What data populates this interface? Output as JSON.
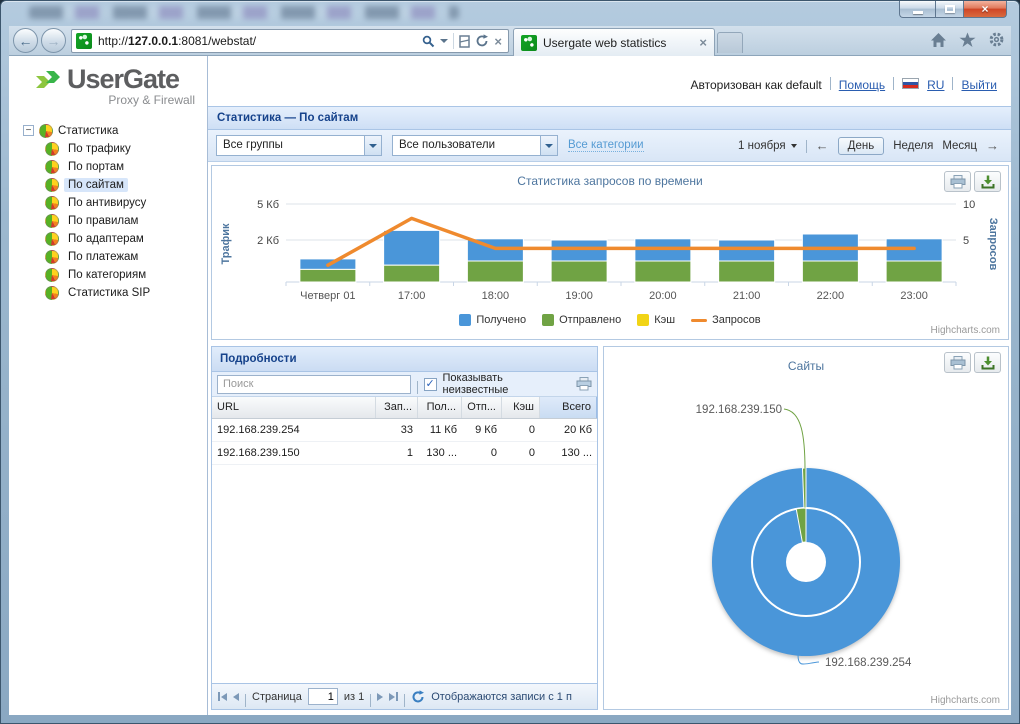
{
  "browser": {
    "url_scheme": "http://",
    "url_host": "127.0.0.1",
    "url_rest": ":8081/webstat/",
    "tab_title": "Usergate web statistics"
  },
  "icons": {
    "back": "←",
    "forward": "→",
    "close": "×",
    "check": "✓",
    "minus": "−",
    "period_prev": "←",
    "period_next": "→"
  },
  "sidebar": {
    "logo_title": "UserGate",
    "logo_subtitle": "Proxy & Firewall",
    "tree_root": "Статистика",
    "items": [
      {
        "label": "По трафику",
        "selected": false
      },
      {
        "label": "По портам",
        "selected": false
      },
      {
        "label": "По сайтам",
        "selected": true
      },
      {
        "label": "По антивирусу",
        "selected": false
      },
      {
        "label": "По правилам",
        "selected": false
      },
      {
        "label": "По адаптерам",
        "selected": false
      },
      {
        "label": "По платежам",
        "selected": false
      },
      {
        "label": "По категориям",
        "selected": false
      },
      {
        "label": "Статистика SIP",
        "selected": false
      }
    ]
  },
  "header": {
    "auth_text": "Авторизован как default",
    "help_link": "Помощь",
    "lang_link": "RU",
    "logout_link": "Выйти"
  },
  "page_title": "Статистика — По сайтам",
  "filters": {
    "groups_value": "Все группы",
    "users_value": "Все пользователи",
    "categories_link": "Все категории",
    "date_value": "1 ноября",
    "day_label": "День",
    "week_label": "Неделя",
    "month_label": "Месяц"
  },
  "chart_data": [
    {
      "type": "bar",
      "title": "Статистика запросов по времени",
      "categories": [
        "Четверг 01",
        "17:00",
        "18:00",
        "19:00",
        "20:00",
        "21:00",
        "22:00",
        "23:00"
      ],
      "stacked": true,
      "series": [
        {
          "name": "Получено",
          "type": "bar",
          "color": "#4a96d9",
          "unit": "Кб",
          "values": [
            0.5,
            2.0,
            1.1,
            1.0,
            1.1,
            1.0,
            1.5,
            1.1
          ]
        },
        {
          "name": "Отправлено",
          "type": "bar",
          "color": "#70a344",
          "unit": "Кб",
          "values": [
            0.6,
            0.8,
            1.0,
            1.0,
            1.0,
            1.0,
            1.0,
            1.0
          ]
        },
        {
          "name": "Кэш",
          "type": "bar",
          "color": "#f1d416",
          "unit": "Кб",
          "values": [
            0,
            0,
            0,
            0,
            0,
            0,
            0,
            0
          ]
        },
        {
          "name": "Запросов",
          "type": "line",
          "color": "#ef8a2e",
          "values": [
            2,
            8,
            4,
            4,
            4,
            4,
            4,
            4
          ]
        }
      ],
      "yaxis_left": {
        "title": "Трафик",
        "ticks": [
          "2 Кб",
          "5 Кб"
        ]
      },
      "yaxis_right": {
        "title": "Запросов",
        "ticks": [
          "5",
          "10"
        ]
      },
      "grid": true,
      "legend_position": "bottom",
      "credits": "Highcharts.com"
    },
    {
      "type": "pie",
      "title": "Сайты",
      "labels": [
        "192.168.239.254",
        "192.168.239.150"
      ],
      "colors": [
        "#4a96d9",
        "#70a344"
      ],
      "outer_shares": [
        0.994,
        0.006
      ],
      "inner_shares": [
        0.971,
        0.029
      ],
      "donut": true,
      "credits": "Highcharts.com"
    }
  ],
  "details": {
    "title": "Подробности",
    "search_placeholder": "Поиск",
    "show_unknown_label": "Показывать неизвестные",
    "show_unknown_checked": true,
    "columns": [
      "URL",
      "Зап...",
      "Пол...",
      "Отп...",
      "Кэш",
      "Всего"
    ],
    "rows": [
      [
        "192.168.239.254",
        "33",
        "11 Кб",
        "9 Кб",
        "0",
        "20 Кб"
      ],
      [
        "192.168.239.150",
        "1",
        "130 ...",
        "0",
        "0",
        "130 ..."
      ]
    ],
    "pagination": {
      "page_label": "Страница",
      "page_value": "1",
      "of_label": "из 1",
      "status": "Отображаются записи с 1 п"
    }
  }
}
